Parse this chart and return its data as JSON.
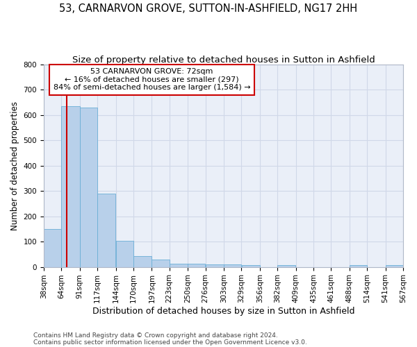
{
  "title": "53, CARNARVON GROVE, SUTTON-IN-ASHFIELD, NG17 2HH",
  "subtitle": "Size of property relative to detached houses in Sutton in Ashfield",
  "xlabel": "Distribution of detached houses by size in Sutton in Ashfield",
  "ylabel": "Number of detached properties",
  "footnote1": "Contains HM Land Registry data © Crown copyright and database right 2024.",
  "footnote2": "Contains public sector information licensed under the Open Government Licence v3.0.",
  "annotation_line1": "53 CARNARVON GROVE: 72sqm",
  "annotation_line2": "← 16% of detached houses are smaller (297)",
  "annotation_line3": "84% of semi-detached houses are larger (1,584) →",
  "property_sqm": 72,
  "bar_left_edges": [
    38,
    64,
    91,
    117,
    144,
    170,
    197,
    223,
    250,
    276,
    303,
    329,
    356,
    382,
    409,
    435,
    461,
    488,
    514,
    541
  ],
  "bar_widths": [
    26,
    27,
    26,
    27,
    26,
    27,
    26,
    27,
    26,
    27,
    26,
    27,
    26,
    27,
    26,
    26,
    27,
    26,
    27,
    26
  ],
  "bar_heights": [
    150,
    635,
    630,
    290,
    103,
    42,
    30,
    13,
    13,
    11,
    11,
    8,
    0,
    8,
    0,
    0,
    0,
    8,
    0,
    8
  ],
  "bar_color": "#b8d0ea",
  "bar_edge_color": "#6aaed6",
  "redline_x": 72,
  "ylim": [
    0,
    800
  ],
  "yticks": [
    0,
    100,
    200,
    300,
    400,
    500,
    600,
    700,
    800
  ],
  "xtick_labels": [
    "38sqm",
    "64sqm",
    "91sqm",
    "117sqm",
    "144sqm",
    "170sqm",
    "197sqm",
    "223sqm",
    "250sqm",
    "276sqm",
    "303sqm",
    "329sqm",
    "356sqm",
    "382sqm",
    "409sqm",
    "435sqm",
    "461sqm",
    "488sqm",
    "514sqm",
    "541sqm",
    "567sqm"
  ],
  "grid_color": "#d0d8e8",
  "bg_color": "#eaeff8",
  "annotation_box_color": "#cc0000",
  "title_fontsize": 10.5,
  "subtitle_fontsize": 9.5,
  "xlabel_fontsize": 9,
  "ylabel_fontsize": 8.5,
  "annot_fontsize": 8,
  "tick_fontsize": 7.5,
  "footnote_fontsize": 6.5
}
